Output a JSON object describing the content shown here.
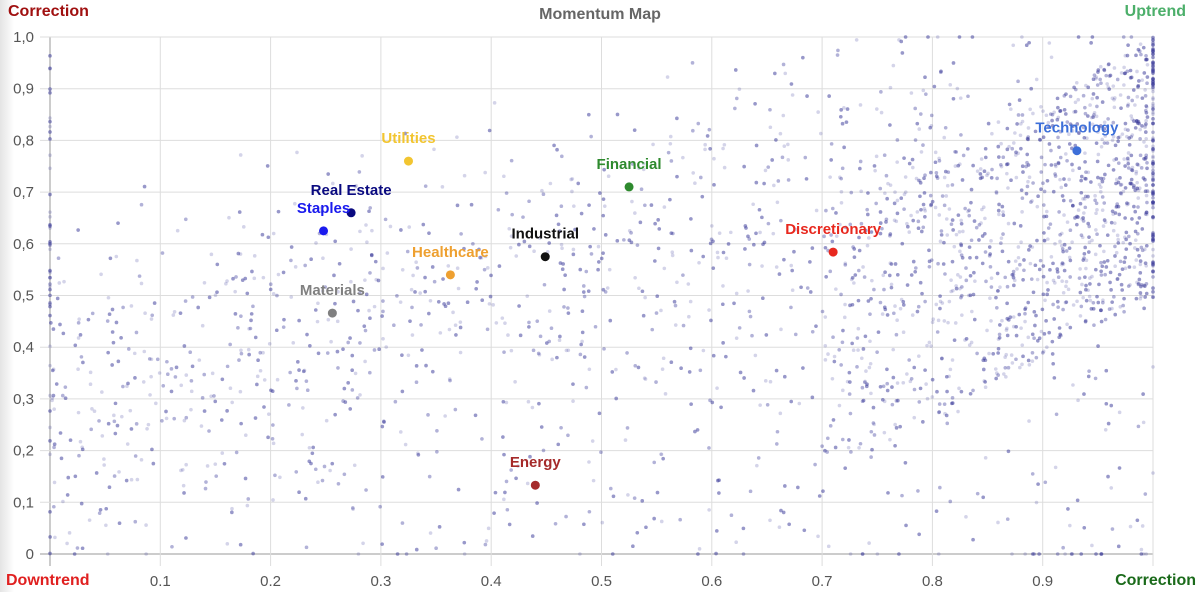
{
  "chart_data": {
    "type": "scatter",
    "title": "Momentum Map",
    "xlim": [
      0,
      1
    ],
    "ylim": [
      0,
      1
    ],
    "grid": true,
    "x_ticks": [
      "0.1",
      "0.2",
      "0.3",
      "0.4",
      "0.5",
      "0.6",
      "0.7",
      "0.8",
      "0.9"
    ],
    "y_ticks": [
      "0",
      "0,1",
      "0,2",
      "0,3",
      "0,4",
      "0,5",
      "0,6",
      "0,7",
      "0,8",
      "0,9",
      "1,0"
    ],
    "corner_labels": {
      "top_left": {
        "text": "Correction",
        "color": "#a01010"
      },
      "top_right": {
        "text": "Uptrend",
        "color": "#4caf6a"
      },
      "bottom_left": {
        "text": "Downtrend",
        "color": "#e02020"
      },
      "bottom_right": {
        "text": "Correction",
        "color": "#1a6a1a"
      }
    },
    "background_point_color": "#3a3a9a",
    "series": [
      {
        "name": "Technology",
        "x": 0.931,
        "y": 0.78,
        "color": "#3d6fd9"
      },
      {
        "name": "Utilities",
        "x": 0.325,
        "y": 0.76,
        "color": "#f2c530"
      },
      {
        "name": "Financial",
        "x": 0.525,
        "y": 0.71,
        "color": "#2e8a2e"
      },
      {
        "name": "Real Estate",
        "x": 0.273,
        "y": 0.66,
        "color": "#0a0a80"
      },
      {
        "name": "Staples",
        "x": 0.248,
        "y": 0.625,
        "color": "#1a1aee"
      },
      {
        "name": "Industrial",
        "x": 0.449,
        "y": 0.575,
        "color": "#111111"
      },
      {
        "name": "Discretionary",
        "x": 0.71,
        "y": 0.584,
        "color": "#e8281e"
      },
      {
        "name": "Healthcare",
        "x": 0.363,
        "y": 0.54,
        "color": "#eea030"
      },
      {
        "name": "Materials",
        "x": 0.256,
        "y": 0.466,
        "color": "#808080"
      },
      {
        "name": "Energy",
        "x": 0.44,
        "y": 0.133,
        "color": "#a52a2a"
      }
    ]
  }
}
